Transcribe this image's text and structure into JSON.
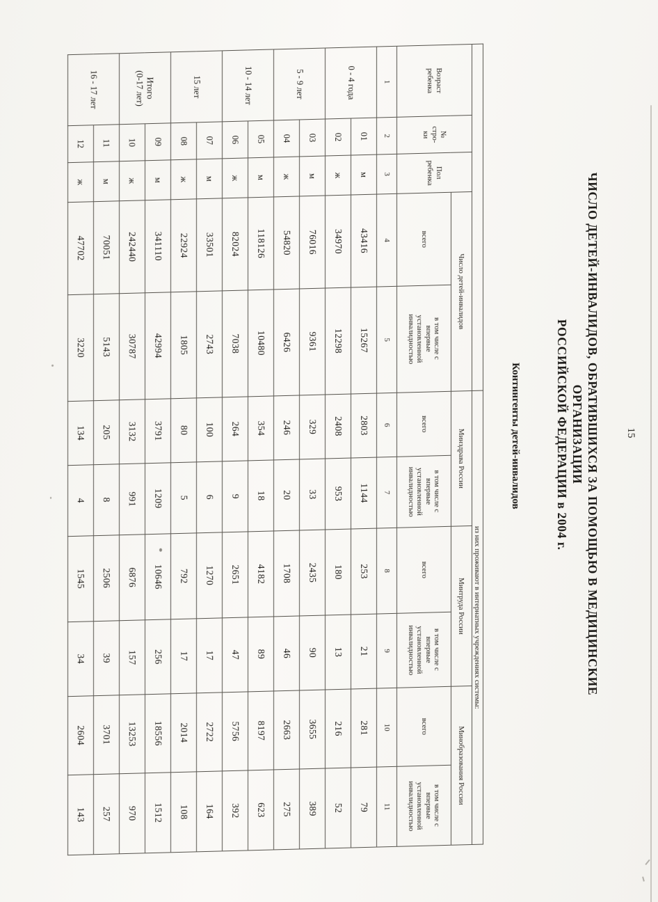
{
  "page": {
    "number": "15"
  },
  "header": {
    "title_line1": "ЧИСЛО ДЕТЕЙ-ИНВАЛИДОВ, ОБРАТИВШИХСЯ ЗА ПОМОЩЬЮ В МЕДИЦИНСКИЕ",
    "title_line2": "ОРГАНИЗАЦИИ",
    "title_line3": "РОССИЙСКОЙ ФЕДЕРАЦИИ в 2004 г.",
    "subtitle": "Контингенты детей-инвалидов"
  },
  "table": {
    "col_headers": {
      "age": "Возраст\nребенка",
      "row_no": "№\nстро-\nки",
      "sex": "Пол\nребенка",
      "group_total": "Число детей-инвалидов",
      "group_resident": "из них проживают в интернатных учреждениях системы:",
      "min_health": "Минздрава России",
      "min_labor": "Минтруда России",
      "min_edu": "Минобразования России",
      "sub_total": "всего",
      "sub_first": "в том числе с\nвпервые\nустановленной\nинвалидностью",
      "col_numbers": [
        "1",
        "2",
        "3",
        "4",
        "5",
        "6",
        "7",
        "8",
        "9",
        "10",
        "11"
      ]
    },
    "groups": [
      {
        "age": "0 - 4 года",
        "rows": [
          [
            "01",
            "м",
            "43416",
            "15267",
            "2803",
            "1144",
            "253",
            "21",
            "281",
            "79"
          ],
          [
            "02",
            "ж",
            "34970",
            "12298",
            "2408",
            "953",
            "180",
            "13",
            "216",
            "52"
          ]
        ]
      },
      {
        "age": "5 - 9 лет",
        "rows": [
          [
            "03",
            "м",
            "76016",
            "9361",
            "329",
            "33",
            "2435",
            "90",
            "3655",
            "389"
          ],
          [
            "04",
            "ж",
            "54820",
            "6426",
            "246",
            "20",
            "1708",
            "46",
            "2663",
            "275"
          ]
        ]
      },
      {
        "age": "10 - 14 лет",
        "rows": [
          [
            "05",
            "м",
            "118126",
            "10480",
            "354",
            "18",
            "4182",
            "89",
            "8197",
            "623"
          ],
          [
            "06",
            "ж",
            "82024",
            "7038",
            "264",
            "9",
            "2651",
            "47",
            "5756",
            "392"
          ]
        ]
      },
      {
        "age": "15 лет",
        "rows": [
          [
            "07",
            "м",
            "33501",
            "2743",
            "100",
            "6",
            "1270",
            "17",
            "2722",
            "164"
          ],
          [
            "08",
            "ж",
            "22924",
            "1805",
            "80",
            "5",
            "792",
            "17",
            "2014",
            "108"
          ]
        ]
      },
      {
        "age": "Итого\n(0-17 лет)",
        "rows": [
          [
            "09",
            "м",
            "341110",
            "42994",
            "3791",
            "1209",
            "10646",
            "256",
            "18556",
            "1512"
          ],
          [
            "10",
            "ж",
            "242440",
            "30787",
            "3132",
            "991",
            "6876",
            "157",
            "13253",
            "970"
          ]
        ]
      },
      {
        "age": "16 - 17 лет",
        "rows": [
          [
            "11",
            "м",
            "70051",
            "5143",
            "205",
            "8",
            "2506",
            "39",
            "3701",
            "257"
          ],
          [
            "12",
            "ж",
            "47702",
            "3220",
            "134",
            "4",
            "1545",
            "34",
            "2604",
            "143"
          ]
        ]
      }
    ]
  }
}
